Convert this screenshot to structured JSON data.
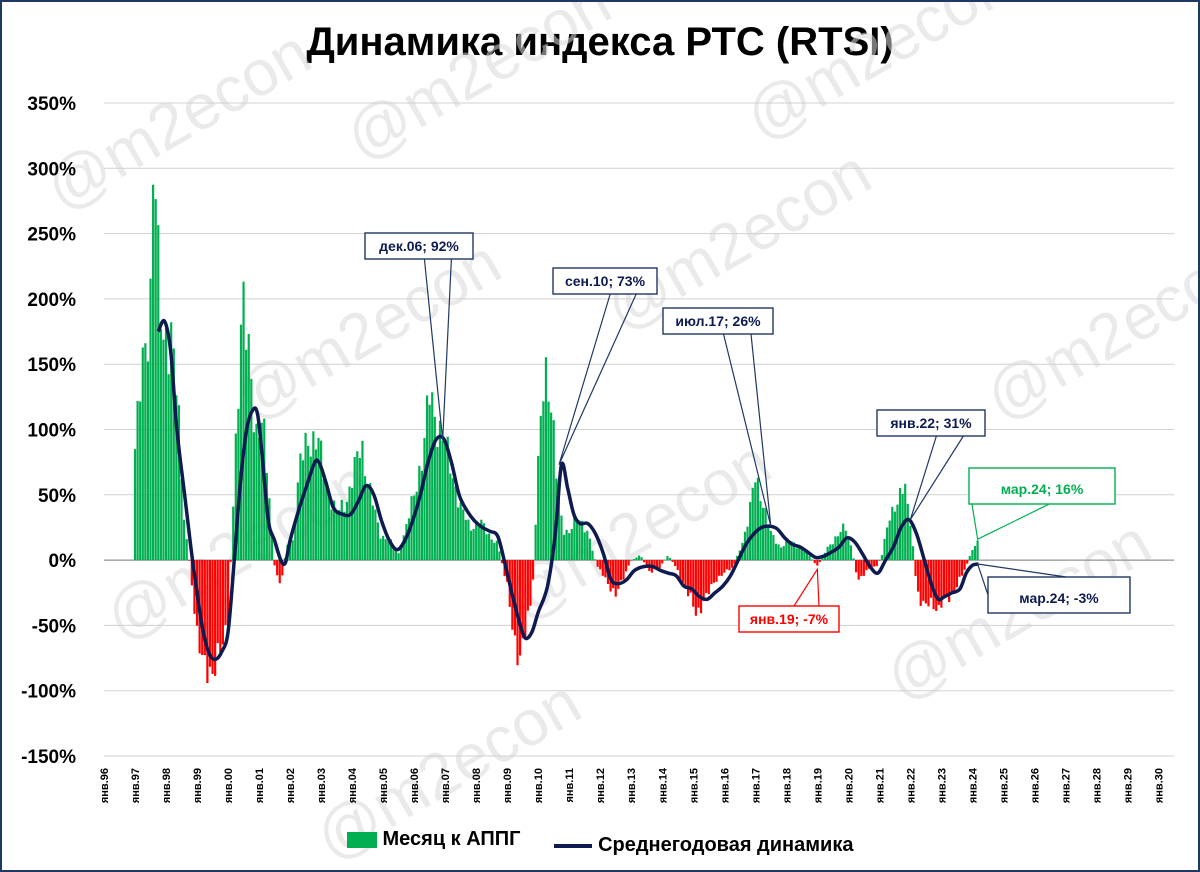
{
  "title": "Динамика индекса РТС (RTSI)",
  "watermark": "@m2econ",
  "legend": {
    "bars_label": "Месяц к АППГ",
    "line_label": "Среднегодовая динамика"
  },
  "colors": {
    "positive_bar": "#00b050",
    "negative_bar": "#ff0000",
    "line": "#0d1b50",
    "frame": "#1f3864",
    "callout_highlight": "#00b050"
  },
  "chart_data": {
    "type": "bar",
    "title": "Динамика индекса РТС (RTSI)",
    "ylim": [
      -150,
      350
    ],
    "yticks": [
      -150,
      -100,
      -50,
      0,
      50,
      100,
      150,
      200,
      250,
      300,
      350
    ],
    "ytick_labels": [
      "-150%",
      "-100%",
      "-50%",
      "0%",
      "50%",
      "100%",
      "150%",
      "200%",
      "250%",
      "300%",
      "350%"
    ],
    "x_labels": [
      "янв.96",
      "янв.97",
      "янв.98",
      "янв.99",
      "янв.00",
      "янв.01",
      "янв.02",
      "янв.03",
      "янв.04",
      "янв.05",
      "янв.06",
      "янв.07",
      "янв.08",
      "янв.09",
      "янв.10",
      "янв.11",
      "янв.12",
      "янв.13",
      "янв.14",
      "янв.15",
      "янв.16",
      "янв.17",
      "янв.18",
      "янв.19",
      "янв.20",
      "янв.21",
      "янв.22",
      "янв.23",
      "янв.24",
      "янв.25",
      "янв.26",
      "янв.27",
      "янв.28",
      "янв.29",
      "янв.30"
    ],
    "grid": true,
    "series": [
      {
        "name": "Месяц к АППГ",
        "type": "bar",
        "anchors": [
          [
            1997.0,
            85
          ],
          [
            1997.3,
            160
          ],
          [
            1997.5,
            205
          ],
          [
            1997.6,
            320
          ],
          [
            1997.75,
            215
          ],
          [
            1997.9,
            170
          ],
          [
            1998.0,
            180
          ],
          [
            1998.2,
            165
          ],
          [
            1998.4,
            110
          ],
          [
            1998.6,
            28
          ],
          [
            1998.8,
            -10
          ],
          [
            1999.0,
            -55
          ],
          [
            1999.2,
            -85
          ],
          [
            1999.5,
            -82
          ],
          [
            1999.8,
            -70
          ],
          [
            2000.0,
            -45
          ],
          [
            2000.2,
            60
          ],
          [
            2000.45,
            210
          ],
          [
            2000.6,
            165
          ],
          [
            2000.9,
            100
          ],
          [
            2001.1,
            110
          ],
          [
            2001.3,
            55
          ],
          [
            2001.5,
            -5
          ],
          [
            2001.7,
            -20
          ],
          [
            2001.9,
            12
          ],
          [
            2002.1,
            15
          ],
          [
            2002.3,
            70
          ],
          [
            2002.6,
            95
          ],
          [
            2002.9,
            90
          ],
          [
            2003.2,
            55
          ],
          [
            2003.5,
            35
          ],
          [
            2003.8,
            45
          ],
          [
            2004.1,
            70
          ],
          [
            2004.3,
            90
          ],
          [
            2004.6,
            50
          ],
          [
            2004.9,
            20
          ],
          [
            2005.2,
            15
          ],
          [
            2005.5,
            5
          ],
          [
            2005.8,
            30
          ],
          [
            2006.0,
            50
          ],
          [
            2006.3,
            85
          ],
          [
            2006.5,
            125
          ],
          [
            2006.7,
            110
          ],
          [
            2006.9,
            95
          ],
          [
            2007.2,
            70
          ],
          [
            2007.5,
            40
          ],
          [
            2007.8,
            25
          ],
          [
            2008.1,
            30
          ],
          [
            2008.4,
            20
          ],
          [
            2008.7,
            12
          ],
          [
            2009.0,
            -20
          ],
          [
            2009.2,
            -60
          ],
          [
            2009.4,
            -72
          ],
          [
            2009.6,
            -55
          ],
          [
            2009.8,
            -30
          ],
          [
            2010.0,
            70
          ],
          [
            2010.2,
            160
          ],
          [
            2010.4,
            120
          ],
          [
            2010.6,
            60
          ],
          [
            2010.8,
            25
          ],
          [
            2011.0,
            20
          ],
          [
            2011.3,
            35
          ],
          [
            2011.6,
            20
          ],
          [
            2011.9,
            -5
          ],
          [
            2012.2,
            -15
          ],
          [
            2012.5,
            -28
          ],
          [
            2012.8,
            -10
          ],
          [
            2013.0,
            0
          ],
          [
            2013.3,
            4
          ],
          [
            2013.6,
            -10
          ],
          [
            2013.9,
            -6
          ],
          [
            2014.2,
            4
          ],
          [
            2014.5,
            -8
          ],
          [
            2014.8,
            -25
          ],
          [
            2015.1,
            -40
          ],
          [
            2015.4,
            -30
          ],
          [
            2015.7,
            -15
          ],
          [
            2016.0,
            -10
          ],
          [
            2016.3,
            -5
          ],
          [
            2016.6,
            15
          ],
          [
            2016.8,
            35
          ],
          [
            2017.0,
            62
          ],
          [
            2017.2,
            50
          ],
          [
            2017.5,
            20
          ],
          [
            2017.8,
            10
          ],
          [
            2018.1,
            15
          ],
          [
            2018.4,
            10
          ],
          [
            2018.7,
            5
          ],
          [
            2019.0,
            -5
          ],
          [
            2019.3,
            8
          ],
          [
            2019.6,
            18
          ],
          [
            2019.9,
            25
          ],
          [
            2020.1,
            10
          ],
          [
            2020.3,
            -15
          ],
          [
            2020.6,
            -8
          ],
          [
            2020.9,
            -5
          ],
          [
            2021.1,
            5
          ],
          [
            2021.3,
            35
          ],
          [
            2021.6,
            40
          ],
          [
            2021.8,
            65
          ],
          [
            2022.0,
            30
          ],
          [
            2022.2,
            -20
          ],
          [
            2022.4,
            -38
          ],
          [
            2022.7,
            -30
          ],
          [
            2022.9,
            -40
          ],
          [
            2023.1,
            -30
          ],
          [
            2023.4,
            -25
          ],
          [
            2023.6,
            -15
          ],
          [
            2023.8,
            -5
          ],
          [
            2024.0,
            8
          ],
          [
            2024.2,
            16
          ]
        ]
      },
      {
        "name": "Среднегодовая динамика",
        "type": "line",
        "points": [
          [
            1997.75,
            175
          ],
          [
            1997.95,
            183
          ],
          [
            1998.15,
            160
          ],
          [
            1998.35,
            100
          ],
          [
            1998.6,
            50
          ],
          [
            1998.8,
            10
          ],
          [
            1999.0,
            -25
          ],
          [
            1999.2,
            -55
          ],
          [
            1999.4,
            -72
          ],
          [
            1999.6,
            -76
          ],
          [
            1999.8,
            -70
          ],
          [
            2000.0,
            -55
          ],
          [
            2000.2,
            0
          ],
          [
            2000.4,
            60
          ],
          [
            2000.6,
            100
          ],
          [
            2000.8,
            115
          ],
          [
            2000.95,
            112
          ],
          [
            2001.1,
            80
          ],
          [
            2001.3,
            30
          ],
          [
            2001.5,
            15
          ],
          [
            2001.7,
            0
          ],
          [
            2001.85,
            -2
          ],
          [
            2002.0,
            15
          ],
          [
            2002.3,
            40
          ],
          [
            2002.55,
            58
          ],
          [
            2002.8,
            75
          ],
          [
            2002.95,
            74
          ],
          [
            2003.15,
            60
          ],
          [
            2003.4,
            40
          ],
          [
            2003.7,
            35
          ],
          [
            2003.95,
            35
          ],
          [
            2004.2,
            45
          ],
          [
            2004.45,
            57
          ],
          [
            2004.7,
            50
          ],
          [
            2004.95,
            30
          ],
          [
            2005.2,
            15
          ],
          [
            2005.45,
            8
          ],
          [
            2005.7,
            15
          ],
          [
            2005.95,
            30
          ],
          [
            2006.2,
            50
          ],
          [
            2006.45,
            75
          ],
          [
            2006.7,
            92
          ],
          [
            2006.95,
            93
          ],
          [
            2007.2,
            75
          ],
          [
            2007.45,
            50
          ],
          [
            2007.7,
            38
          ],
          [
            2007.95,
            30
          ],
          [
            2008.2,
            25
          ],
          [
            2008.45,
            22
          ],
          [
            2008.7,
            18
          ],
          [
            2008.95,
            -5
          ],
          [
            2009.2,
            -30
          ],
          [
            2009.45,
            -52
          ],
          [
            2009.6,
            -60
          ],
          [
            2009.8,
            -55
          ],
          [
            2010.0,
            -40
          ],
          [
            2010.3,
            -20
          ],
          [
            2010.55,
            20
          ],
          [
            2010.75,
            73
          ],
          [
            2010.95,
            55
          ],
          [
            2011.15,
            35
          ],
          [
            2011.35,
            28
          ],
          [
            2011.6,
            28
          ],
          [
            2011.85,
            20
          ],
          [
            2012.1,
            5
          ],
          [
            2012.35,
            -15
          ],
          [
            2012.6,
            -18
          ],
          [
            2012.85,
            -15
          ],
          [
            2013.1,
            -8
          ],
          [
            2013.4,
            -5
          ],
          [
            2013.7,
            -5
          ],
          [
            2013.95,
            -8
          ],
          [
            2014.2,
            -10
          ],
          [
            2014.45,
            -12
          ],
          [
            2014.7,
            -20
          ],
          [
            2014.95,
            -22
          ],
          [
            2015.2,
            -28
          ],
          [
            2015.45,
            -30
          ],
          [
            2015.7,
            -25
          ],
          [
            2015.95,
            -20
          ],
          [
            2016.2,
            -12
          ],
          [
            2016.45,
            0
          ],
          [
            2016.7,
            12
          ],
          [
            2016.95,
            20
          ],
          [
            2017.2,
            25
          ],
          [
            2017.45,
            26
          ],
          [
            2017.7,
            24
          ],
          [
            2017.95,
            17
          ],
          [
            2018.2,
            12
          ],
          [
            2018.45,
            10
          ],
          [
            2018.7,
            6
          ],
          [
            2018.95,
            2
          ],
          [
            2019.2,
            3
          ],
          [
            2019.45,
            6
          ],
          [
            2019.7,
            10
          ],
          [
            2019.95,
            17
          ],
          [
            2020.2,
            14
          ],
          [
            2020.45,
            5
          ],
          [
            2020.7,
            -5
          ],
          [
            2020.95,
            -10
          ],
          [
            2021.2,
            0
          ],
          [
            2021.45,
            10
          ],
          [
            2021.7,
            25
          ],
          [
            2021.95,
            31
          ],
          [
            2022.2,
            20
          ],
          [
            2022.45,
            0
          ],
          [
            2022.7,
            -20
          ],
          [
            2022.9,
            -30
          ],
          [
            2023.1,
            -28
          ],
          [
            2023.35,
            -25
          ],
          [
            2023.6,
            -22
          ],
          [
            2023.8,
            -10
          ],
          [
            2024.0,
            -4
          ],
          [
            2024.2,
            -3
          ]
        ]
      }
    ],
    "annotations": [
      {
        "label": "дек.06; 92%",
        "x": 2006.92,
        "y": 92,
        "style": "navy"
      },
      {
        "label": "сен.10; 73%",
        "x": 2010.67,
        "y": 73,
        "style": "navy"
      },
      {
        "label": "июл.17; 26%",
        "x": 2017.5,
        "y": 26,
        "style": "navy"
      },
      {
        "label": "янв.22; 31%",
        "x": 2022.0,
        "y": 31,
        "style": "navy"
      },
      {
        "label": "янв.19; -7%",
        "x": 2019.0,
        "y": -7,
        "style": "red"
      },
      {
        "label": "мар.24; 16%",
        "x": 2024.17,
        "y": 16,
        "style": "green-large"
      },
      {
        "label": "мар.24; -3%",
        "x": 2024.17,
        "y": -3,
        "style": "navy-large"
      }
    ]
  }
}
